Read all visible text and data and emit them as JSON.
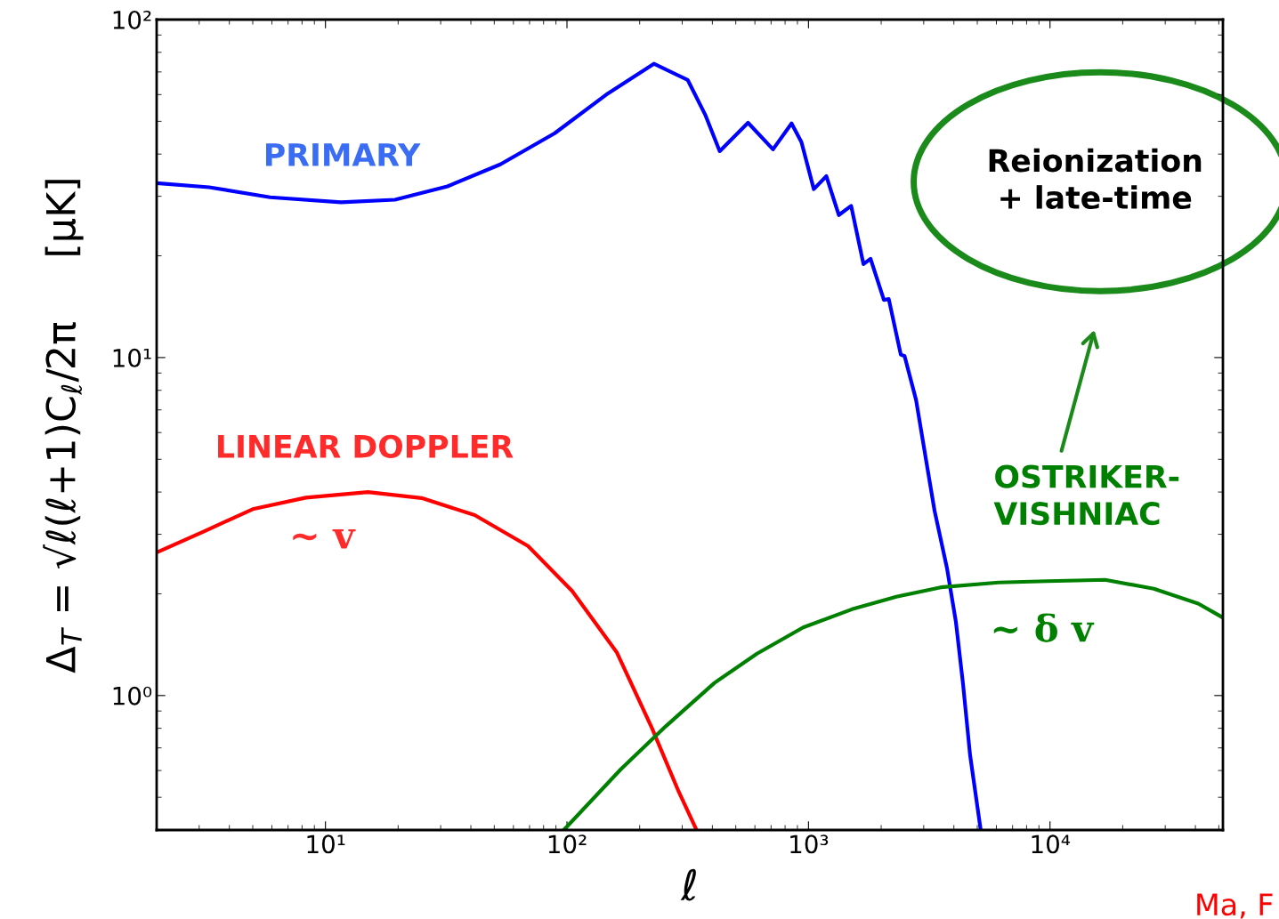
{
  "chart_data": {
    "type": "line",
    "xlabel": "ℓ",
    "ylabel": "Δ$_{T}$ = √ℓ(ℓ+1)C$_{ℓ}$/2π     [μK]",
    "log": "xy",
    "grid": false,
    "legend": false,
    "marker": "none",
    "line_style": "solid",
    "xlim": [
      2,
      52000
    ],
    "ylim": [
      0.4,
      100
    ],
    "xticks": [
      {
        "value": 10,
        "label": "10¹"
      },
      {
        "value": 100,
        "label": "10²"
      },
      {
        "value": 1000,
        "label": "10³"
      },
      {
        "value": 10000,
        "label": "10⁴"
      }
    ],
    "yticks": [
      {
        "value": 1,
        "label": "10⁰"
      },
      {
        "value": 10,
        "label": "10¹"
      },
      {
        "value": 100,
        "label": "10²"
      }
    ],
    "series": [
      {
        "name": "PRIMARY",
        "color": "#0000ff",
        "x": [
          2,
          3.3,
          5.9,
          11.6,
          19.4,
          32,
          53,
          89,
          148,
          229,
          316,
          375,
          429,
          562,
          713,
          851,
          935,
          1052,
          1186,
          1335,
          1502,
          1689,
          1807,
          2052,
          2150,
          2411,
          2500,
          2788,
          3056,
          3327,
          3746,
          4078,
          4365,
          4667,
          5165
        ],
        "values": [
          32.8,
          31.9,
          29.8,
          28.8,
          29.3,
          32.1,
          37.3,
          46.1,
          60.5,
          74,
          66.3,
          52,
          40.8,
          49.5,
          41.3,
          49.3,
          43.4,
          31.5,
          34.4,
          26.4,
          28.1,
          18.9,
          19.6,
          14.8,
          14.9,
          10.2,
          10.1,
          7.5,
          5.06,
          3.52,
          2.38,
          1.65,
          1.08,
          0.667,
          0.4
        ]
      },
      {
        "name": "LINEAR DOPPLER",
        "color": "#ff0000",
        "x": [
          2,
          3.14,
          5,
          8.3,
          15,
          25,
          41.5,
          69,
          105,
          161,
          225,
          290,
          344
        ],
        "values": [
          2.65,
          3.06,
          3.56,
          3.85,
          4.0,
          3.84,
          3.42,
          2.77,
          2.04,
          1.34,
          0.8,
          0.52,
          0.4
        ]
      },
      {
        "name": "OSTRIKER-\nVISHNIAC",
        "color": "#008000",
        "x": [
          97,
          167,
          256,
          408,
          612,
          951,
          1514,
          2312,
          3530,
          6124,
          9750,
          16900,
          26900,
          41100,
          52000
        ],
        "values": [
          0.4,
          0.605,
          0.81,
          1.09,
          1.33,
          1.59,
          1.8,
          1.96,
          2.09,
          2.16,
          2.18,
          2.2,
          2.07,
          1.87,
          1.7
        ]
      }
    ],
    "annotations": [
      "~ v",
      "~ δ v",
      "Reionization\n+ late-time",
      "Ma, F"
    ]
  }
}
